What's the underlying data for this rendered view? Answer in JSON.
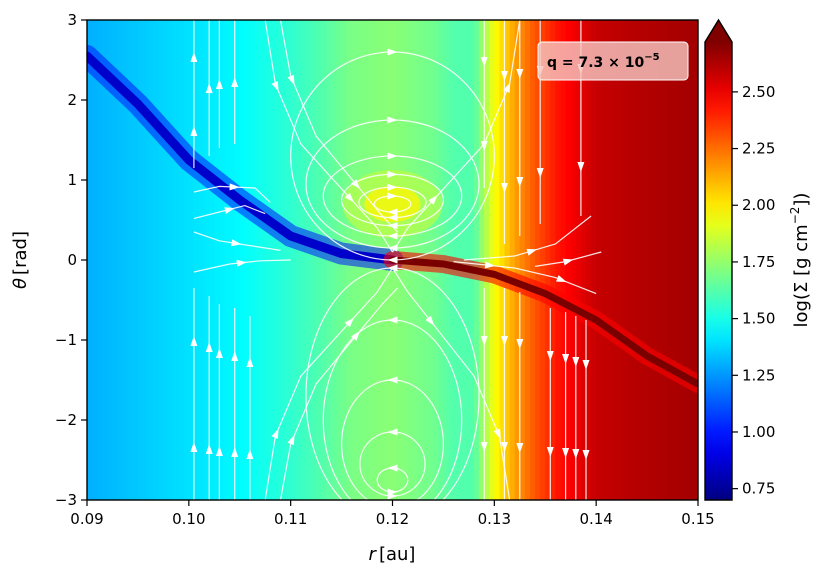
{
  "chart_data": {
    "type": "heatmap",
    "title": "",
    "xlabel": "r",
    "xunit": "[au]",
    "ylabel": "θ",
    "yunit": "[rad]",
    "xlim": [
      0.09,
      0.15
    ],
    "ylim": [
      -3,
      3
    ],
    "x_ticks": [
      {
        "value": 0.09,
        "label": "0.09"
      },
      {
        "value": 0.1,
        "label": "0.10"
      },
      {
        "value": 0.11,
        "label": "0.11"
      },
      {
        "value": 0.12,
        "label": "0.12"
      },
      {
        "value": 0.13,
        "label": "0.13"
      },
      {
        "value": 0.14,
        "label": "0.14"
      },
      {
        "value": 0.15,
        "label": "0.15"
      }
    ],
    "y_ticks": [
      {
        "value": 3,
        "label": "3"
      },
      {
        "value": 2,
        "label": "2"
      },
      {
        "value": 1,
        "label": "1"
      },
      {
        "value": 0,
        "label": "0"
      },
      {
        "value": -1,
        "label": "−1"
      },
      {
        "value": -2,
        "label": "−2"
      },
      {
        "value": -3,
        "label": "−3"
      }
    ],
    "annotation": {
      "prefix": "q = 7.3 × 10",
      "exponent": "−5"
    },
    "colorbar": {
      "label": "log(Σ [g cm",
      "label_exp": "−2",
      "label_suffix": "])",
      "colormap": "jet",
      "range": [
        0.7,
        2.72
      ],
      "extend": "max",
      "ticks": [
        {
          "value": 0.75,
          "label": "0.75"
        },
        {
          "value": 1.0,
          "label": "1.00"
        },
        {
          "value": 1.25,
          "label": "1.25"
        },
        {
          "value": 1.5,
          "label": "1.50"
        },
        {
          "value": 1.75,
          "label": "1.75"
        },
        {
          "value": 2.0,
          "label": "2.00"
        },
        {
          "value": 2.25,
          "label": "2.25"
        },
        {
          "value": 2.5,
          "label": "2.50"
        }
      ]
    },
    "radial_profile": {
      "r": [
        0.09,
        0.095,
        0.1,
        0.105,
        0.11,
        0.113,
        0.116,
        0.12,
        0.124,
        0.126,
        0.128,
        0.13,
        0.132,
        0.134,
        0.136,
        0.138,
        0.14,
        0.145,
        0.15
      ],
      "log_sigma": [
        1.3,
        1.35,
        1.4,
        1.45,
        1.55,
        1.62,
        1.7,
        1.73,
        1.68,
        1.62,
        1.62,
        1.95,
        2.15,
        2.3,
        2.42,
        2.5,
        2.58,
        2.62,
        2.65
      ]
    },
    "features": {
      "gap_stripe": {
        "log_sigma": 1.0,
        "points": [
          [
            0.09,
            2.55
          ],
          [
            0.095,
            1.95
          ],
          [
            0.1,
            1.25
          ],
          [
            0.105,
            0.75
          ],
          [
            0.11,
            0.3
          ],
          [
            0.115,
            0.08
          ],
          [
            0.12,
            0.0
          ]
        ]
      },
      "wake_stripe": {
        "log_sigma": 2.72,
        "points": [
          [
            0.12,
            0.0
          ],
          [
            0.125,
            -0.05
          ],
          [
            0.13,
            -0.18
          ],
          [
            0.135,
            -0.42
          ],
          [
            0.14,
            -0.75
          ],
          [
            0.145,
            -1.2
          ],
          [
            0.15,
            -1.55
          ]
        ]
      },
      "density_peak": {
        "r": 0.12,
        "theta": 0.7,
        "log_sigma": 1.98
      }
    },
    "streamlines": [
      {
        "id": "v1",
        "dir": 1,
        "pts": [
          [
            0.1005,
            -3
          ],
          [
            0.1005,
            -0.35
          ]
        ]
      },
      {
        "id": "v2",
        "dir": 1,
        "pts": [
          [
            0.102,
            -3
          ],
          [
            0.102,
            -0.45
          ]
        ]
      },
      {
        "id": "v3",
        "dir": 1,
        "pts": [
          [
            0.103,
            -3
          ],
          [
            0.103,
            -0.55
          ]
        ]
      },
      {
        "id": "v4",
        "dir": 1,
        "pts": [
          [
            0.1045,
            -3
          ],
          [
            0.1045,
            -0.6
          ]
        ]
      },
      {
        "id": "v5",
        "dir": 1,
        "pts": [
          [
            0.106,
            -3
          ],
          [
            0.106,
            -0.7
          ]
        ]
      },
      {
        "id": "v6",
        "dir": 1,
        "pts": [
          [
            0.1005,
            1.15
          ],
          [
            0.1005,
            3
          ]
        ]
      },
      {
        "id": "v7",
        "dir": 1,
        "pts": [
          [
            0.102,
            1.3
          ],
          [
            0.102,
            3
          ]
        ]
      },
      {
        "id": "v8",
        "dir": 1,
        "pts": [
          [
            0.103,
            1.4
          ],
          [
            0.103,
            3
          ]
        ]
      },
      {
        "id": "v9",
        "dir": 1,
        "pts": [
          [
            0.1045,
            1.45
          ],
          [
            0.1045,
            3
          ]
        ]
      },
      {
        "id": "v10",
        "dir": -1,
        "pts": [
          [
            0.1355,
            -3
          ],
          [
            0.1355,
            -0.6
          ]
        ]
      },
      {
        "id": "v11",
        "dir": -1,
        "pts": [
          [
            0.137,
            -3
          ],
          [
            0.137,
            -0.65
          ]
        ]
      },
      {
        "id": "v12",
        "dir": -1,
        "pts": [
          [
            0.138,
            -3
          ],
          [
            0.138,
            -0.7
          ]
        ]
      },
      {
        "id": "v13",
        "dir": -1,
        "pts": [
          [
            0.139,
            -3
          ],
          [
            0.139,
            -0.75
          ]
        ]
      },
      {
        "id": "v14",
        "dir": -1,
        "pts": [
          [
            0.131,
            0.2
          ],
          [
            0.131,
            3
          ]
        ]
      },
      {
        "id": "v15",
        "dir": -1,
        "pts": [
          [
            0.1325,
            0.3
          ],
          [
            0.1325,
            3
          ]
        ]
      },
      {
        "id": "v16",
        "dir": -1,
        "pts": [
          [
            0.1345,
            0.45
          ],
          [
            0.1345,
            3
          ]
        ]
      },
      {
        "id": "v17",
        "dir": -1,
        "pts": [
          [
            0.1385,
            0.55
          ],
          [
            0.1385,
            3
          ]
        ]
      },
      {
        "id": "v18",
        "dir": -1,
        "pts": [
          [
            0.129,
            -3
          ],
          [
            0.129,
            -0.35
          ]
        ]
      },
      {
        "id": "v19",
        "dir": -1,
        "pts": [
          [
            0.131,
            -3
          ],
          [
            0.131,
            -0.35
          ]
        ]
      },
      {
        "id": "v20",
        "dir": -1,
        "pts": [
          [
            0.1325,
            -3
          ],
          [
            0.1325,
            -0.4
          ]
        ]
      },
      {
        "id": "v21",
        "dir": -1,
        "pts": [
          [
            0.129,
            0.9
          ],
          [
            0.129,
            3
          ]
        ]
      },
      {
        "id": "l1",
        "dir": 1,
        "pts": [
          [
            0.1075,
            3
          ],
          [
            0.1085,
            2.2
          ],
          [
            0.111,
            1.45
          ],
          [
            0.1185,
            0.4
          ],
          [
            0.12,
            0.1
          ]
        ]
      },
      {
        "id": "l2",
        "dir": 1,
        "pts": [
          [
            0.109,
            3
          ],
          [
            0.11,
            2.3
          ],
          [
            0.1125,
            1.55
          ],
          [
            0.119,
            0.55
          ],
          [
            0.1205,
            0.35
          ]
        ]
      },
      {
        "id": "l3",
        "dir": 1,
        "pts": [
          [
            0.1075,
            -3
          ],
          [
            0.1085,
            -2.2
          ],
          [
            0.111,
            -1.45
          ],
          [
            0.1185,
            -0.4
          ],
          [
            0.12,
            -0.1
          ]
        ]
      },
      {
        "id": "l4",
        "dir": 1,
        "pts": [
          [
            0.109,
            -3
          ],
          [
            0.11,
            -2.3
          ],
          [
            0.1125,
            -1.55
          ],
          [
            0.119,
            -0.55
          ],
          [
            0.1205,
            -0.35
          ]
        ]
      },
      {
        "id": "l5",
        "dir": -1,
        "pts": [
          [
            0.1325,
            3
          ],
          [
            0.1315,
            2.2
          ],
          [
            0.129,
            1.45
          ],
          [
            0.1215,
            0.4
          ],
          [
            0.12,
            0.1
          ]
        ]
      },
      {
        "id": "l6",
        "dir": -1,
        "pts": [
          [
            0.1315,
            -3
          ],
          [
            0.1305,
            -2.2
          ],
          [
            0.128,
            -1.45
          ],
          [
            0.1215,
            -0.4
          ],
          [
            0.12,
            -0.1
          ]
        ]
      },
      {
        "id": "h1",
        "dir": 1,
        "pts": [
          [
            0.1005,
            0.85
          ],
          [
            0.103,
            0.92
          ],
          [
            0.1065,
            0.9
          ],
          [
            0.108,
            0.72
          ]
        ]
      },
      {
        "id": "h2",
        "dir": 1,
        "pts": [
          [
            0.1005,
            0.52
          ],
          [
            0.103,
            0.6
          ],
          [
            0.1055,
            0.68
          ],
          [
            0.1075,
            0.58
          ]
        ]
      },
      {
        "id": "h3",
        "dir": 1,
        "pts": [
          [
            0.1005,
            0.35
          ],
          [
            0.103,
            0.24
          ],
          [
            0.106,
            0.18
          ],
          [
            0.109,
            0.12
          ]
        ]
      },
      {
        "id": "h4",
        "dir": 1,
        "pts": [
          [
            0.1005,
            -0.15
          ],
          [
            0.104,
            -0.05
          ],
          [
            0.107,
            -0.01
          ],
          [
            0.11,
            0.0
          ]
        ]
      },
      {
        "id": "h5",
        "dir": -1,
        "pts": [
          [
            0.1395,
            0.55
          ],
          [
            0.136,
            0.2
          ],
          [
            0.132,
            0.05
          ],
          [
            0.127,
            0.0
          ]
        ]
      },
      {
        "id": "h6",
        "dir": -1,
        "pts": [
          [
            0.14,
            -0.42
          ],
          [
            0.136,
            -0.22
          ],
          [
            0.132,
            -0.1
          ],
          [
            0.126,
            -0.02
          ]
        ]
      },
      {
        "id": "h7",
        "dir": -1,
        "pts": [
          [
            0.1405,
            0.1
          ],
          [
            0.137,
            -0.02
          ],
          [
            0.134,
            -0.08
          ]
        ]
      }
    ],
    "loops": [
      {
        "id": "e1",
        "r": 0.12,
        "theta": 0.7,
        "dr": 0.0018,
        "dtheta": 0.1,
        "dir": 1
      },
      {
        "id": "e2",
        "r": 0.12,
        "theta": 0.72,
        "dr": 0.0033,
        "dtheta": 0.19,
        "dir": 1
      },
      {
        "id": "e3",
        "r": 0.12,
        "theta": 0.75,
        "dr": 0.005,
        "dtheta": 0.32,
        "dir": 1
      },
      {
        "id": "e4",
        "r": 0.12,
        "theta": 0.8,
        "dr": 0.0068,
        "dtheta": 0.5,
        "dir": 1
      },
      {
        "id": "e5",
        "r": 0.12,
        "theta": 0.95,
        "dr": 0.0085,
        "dtheta": 0.8,
        "dir": 1
      },
      {
        "id": "e6",
        "r": 0.12,
        "theta": 1.3,
        "dr": 0.01,
        "dtheta": 1.3,
        "dir": 1
      },
      {
        "id": "e7",
        "r": 0.12,
        "theta": -2.75,
        "dr": 0.0015,
        "dtheta": 0.15,
        "dir": -1
      },
      {
        "id": "e8",
        "r": 0.12,
        "theta": -2.55,
        "dr": 0.0032,
        "dtheta": 0.4,
        "dir": -1
      },
      {
        "id": "e9",
        "r": 0.12,
        "theta": -2.3,
        "dr": 0.005,
        "dtheta": 0.8,
        "dir": -1
      },
      {
        "id": "e10",
        "r": 0.12,
        "theta": -2.0,
        "dr": 0.0068,
        "dtheta": 1.25,
        "dir": -1
      },
      {
        "id": "e11",
        "r": 0.12,
        "theta": -1.7,
        "dr": 0.0085,
        "dtheta": 1.6,
        "dir": -1
      }
    ]
  }
}
